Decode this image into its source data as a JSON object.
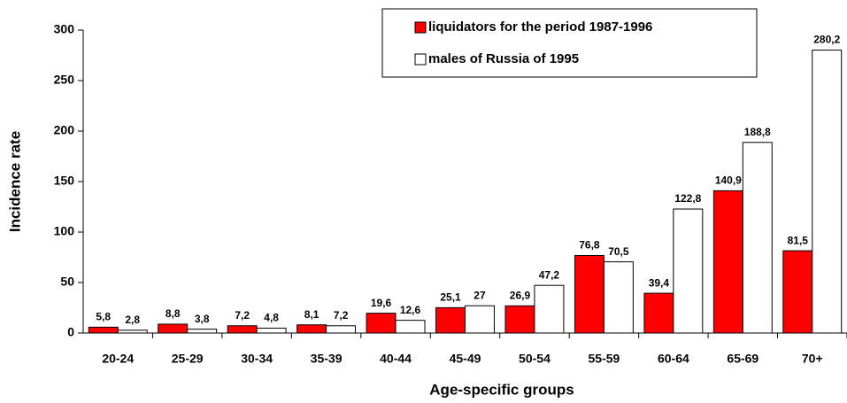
{
  "chart_data": {
    "type": "bar",
    "x_label": "Age-specific groups",
    "y_label": "Incidence rate",
    "categories": [
      "20-24",
      "25-29",
      "30-34",
      "35-39",
      "40-44",
      "45-49",
      "50-54",
      "55-59",
      "60-64",
      "65-69",
      "70+"
    ],
    "series": [
      {
        "name": "liquidators for the period 1987-1996",
        "color": "#ff0000",
        "values": [
          5.8,
          8.8,
          7.2,
          8.1,
          19.6,
          25.1,
          26.9,
          76.8,
          39.4,
          140.9,
          81.5
        ],
        "value_labels": [
          "5,8",
          "8,8",
          "7,2",
          "8,1",
          "19,6",
          "25,1",
          "26,9",
          "76,8",
          "39,4",
          "140,9",
          "81,5"
        ]
      },
      {
        "name": "males of Russia of 1995",
        "color": "#ffffff",
        "values": [
          2.8,
          3.8,
          4.8,
          7.2,
          12.6,
          27,
          47.2,
          70.5,
          122.8,
          188.8,
          280.2
        ],
        "value_labels": [
          "2,8",
          "3,8",
          "4,8",
          "7,2",
          "12,6",
          "27",
          "47,2",
          "70,5",
          "122,8",
          "188,8",
          "280,2"
        ]
      }
    ],
    "ylim": [
      0,
      300
    ],
    "yticks": [
      0,
      50,
      100,
      150,
      200,
      250,
      300
    ],
    "grid": false,
    "legend": "top-right"
  }
}
